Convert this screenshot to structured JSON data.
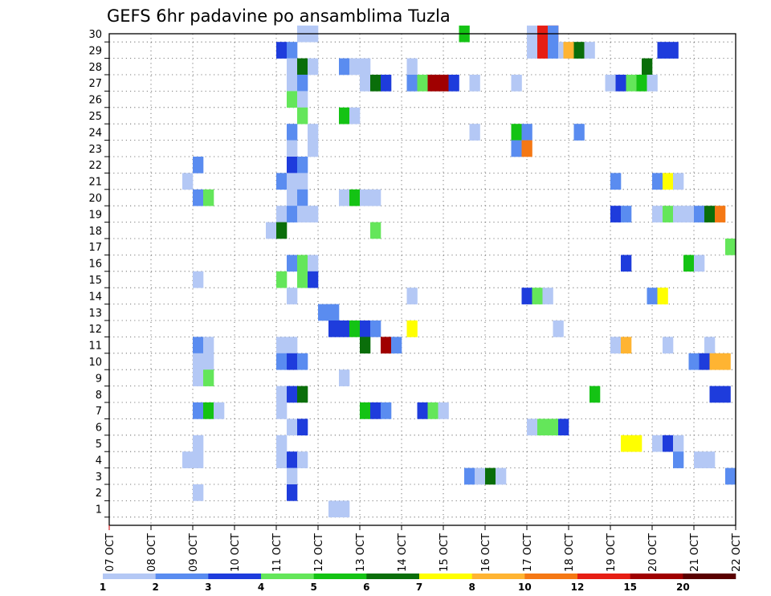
{
  "chart_data": {
    "type": "heatmap",
    "title": "GEFS 6hr padavine po ansamblima Tuzla",
    "x_tick_labels": [
      "07 OCT",
      "08 OCT",
      "09 OCT",
      "10 OCT",
      "11 OCT",
      "12 OCT",
      "13 OCT",
      "14 OCT",
      "15 OCT",
      "16 OCT",
      "17 OCT",
      "18 OCT",
      "19 OCT",
      "20 OCT",
      "21 OCT",
      "22 OCT"
    ],
    "x_range_days": [
      7,
      22
    ],
    "y_tick_labels": [
      "1",
      "2",
      "3",
      "4",
      "5",
      "6",
      "7",
      "8",
      "9",
      "10",
      "11",
      "12",
      "13",
      "14",
      "15",
      "16",
      "17",
      "18",
      "19",
      "20",
      "21",
      "22",
      "23",
      "24",
      "25",
      "26",
      "27",
      "28",
      "29",
      "30"
    ],
    "ylim": [
      0,
      30
    ],
    "grid": true,
    "colorbar": {
      "position": "bottom",
      "tick_labels": [
        "1",
        "2",
        "3",
        "4",
        "5",
        "6",
        "7",
        "8",
        "10",
        "12",
        "15",
        "20"
      ],
      "colors": [
        "#b4c8f5",
        "#5a8cf0",
        "#1e3cdc",
        "#64e65a",
        "#14c314",
        "#0a6e0a",
        "#ffff00",
        "#ffb432",
        "#f57814",
        "#e61e14",
        "#a00000",
        "#5a0000"
      ]
    },
    "cells": [
      {
        "member": 30,
        "day": 11.5,
        "color_class": 1,
        "span": 2
      },
      {
        "member": 30,
        "day": 15.375,
        "color_class": 5
      },
      {
        "member": 30,
        "day": 17.0,
        "color_class": 1
      },
      {
        "member": 30,
        "day": 17.25,
        "color_class": 10,
        "span": 2
      },
      {
        "member": 30,
        "day": 17.5,
        "color_class": 2
      },
      {
        "member": 29,
        "day": 11.0,
        "color_class": 3
      },
      {
        "member": 29,
        "day": 11.25,
        "color_class": 2
      },
      {
        "member": 29,
        "day": 17.0,
        "color_class": 1
      },
      {
        "member": 29,
        "day": 17.25,
        "color_class": 10
      },
      {
        "member": 29,
        "day": 17.5,
        "color_class": 2
      },
      {
        "member": 29,
        "day": 17.75,
        "color_class": 1
      },
      {
        "member": 29,
        "day": 17.875,
        "color_class": 8
      },
      {
        "member": 29,
        "day": 18.125,
        "color_class": 6
      },
      {
        "member": 29,
        "day": 18.375,
        "color_class": 1
      },
      {
        "member": 29,
        "day": 20.125,
        "color_class": 3,
        "span": 2
      },
      {
        "member": 28,
        "day": 11.25,
        "color_class": 1
      },
      {
        "member": 28,
        "day": 11.5,
        "color_class": 6
      },
      {
        "member": 28,
        "day": 11.75,
        "color_class": 1
      },
      {
        "member": 28,
        "day": 12.5,
        "color_class": 2
      },
      {
        "member": 28,
        "day": 12.75,
        "color_class": 1,
        "span": 2
      },
      {
        "member": 28,
        "day": 14.125,
        "color_class": 1
      },
      {
        "member": 28,
        "day": 19.75,
        "color_class": 6
      },
      {
        "member": 27,
        "day": 11.25,
        "color_class": 1
      },
      {
        "member": 27,
        "day": 11.5,
        "color_class": 2
      },
      {
        "member": 27,
        "day": 13.0,
        "color_class": 1
      },
      {
        "member": 27,
        "day": 13.25,
        "color_class": 6
      },
      {
        "member": 27,
        "day": 13.5,
        "color_class": 3
      },
      {
        "member": 27,
        "day": 14.125,
        "color_class": 2
      },
      {
        "member": 27,
        "day": 14.375,
        "color_class": 4
      },
      {
        "member": 27,
        "day": 14.625,
        "color_class": 11,
        "span": 2
      },
      {
        "member": 27,
        "day": 15.125,
        "color_class": 3
      },
      {
        "member": 27,
        "day": 15.625,
        "color_class": 1
      },
      {
        "member": 27,
        "day": 16.625,
        "color_class": 1
      },
      {
        "member": 27,
        "day": 18.875,
        "color_class": 1
      },
      {
        "member": 27,
        "day": 19.125,
        "color_class": 3
      },
      {
        "member": 27,
        "day": 19.375,
        "color_class": 4
      },
      {
        "member": 27,
        "day": 19.625,
        "color_class": 5
      },
      {
        "member": 27,
        "day": 19.875,
        "color_class": 1
      },
      {
        "member": 26,
        "day": 11.25,
        "color_class": 4
      },
      {
        "member": 26,
        "day": 11.5,
        "color_class": 1
      },
      {
        "member": 25,
        "day": 11.5,
        "color_class": 4
      },
      {
        "member": 25,
        "day": 12.5,
        "color_class": 5
      },
      {
        "member": 25,
        "day": 12.75,
        "color_class": 1
      },
      {
        "member": 24,
        "day": 11.25,
        "color_class": 2
      },
      {
        "member": 24,
        "day": 11.75,
        "color_class": 1
      },
      {
        "member": 24,
        "day": 15.625,
        "color_class": 1
      },
      {
        "member": 24,
        "day": 16.625,
        "color_class": 5
      },
      {
        "member": 24,
        "day": 16.875,
        "color_class": 2
      },
      {
        "member": 24,
        "day": 18.125,
        "color_class": 2
      },
      {
        "member": 23,
        "day": 11.25,
        "color_class": 1
      },
      {
        "member": 23,
        "day": 11.75,
        "color_class": 1
      },
      {
        "member": 23,
        "day": 16.625,
        "color_class": 2
      },
      {
        "member": 23,
        "day": 16.875,
        "color_class": 9
      },
      {
        "member": 22,
        "day": 9.0,
        "color_class": 2
      },
      {
        "member": 22,
        "day": 11.25,
        "color_class": 3
      },
      {
        "member": 22,
        "day": 11.5,
        "color_class": 2
      },
      {
        "member": 21,
        "day": 8.75,
        "color_class": 1
      },
      {
        "member": 21,
        "day": 11.0,
        "color_class": 2
      },
      {
        "member": 21,
        "day": 11.25,
        "color_class": 1,
        "span": 2
      },
      {
        "member": 21,
        "day": 19.0,
        "color_class": 2
      },
      {
        "member": 21,
        "day": 20.0,
        "color_class": 2
      },
      {
        "member": 21,
        "day": 20.25,
        "color_class": 7
      },
      {
        "member": 21,
        "day": 20.5,
        "color_class": 1
      },
      {
        "member": 20,
        "day": 9.0,
        "color_class": 2
      },
      {
        "member": 20,
        "day": 9.25,
        "color_class": 4
      },
      {
        "member": 20,
        "day": 11.25,
        "color_class": 1
      },
      {
        "member": 20,
        "day": 11.5,
        "color_class": 2
      },
      {
        "member": 20,
        "day": 12.5,
        "color_class": 1
      },
      {
        "member": 20,
        "day": 12.75,
        "color_class": 5
      },
      {
        "member": 20,
        "day": 13.0,
        "color_class": 1
      },
      {
        "member": 20,
        "day": 13.25,
        "color_class": 1
      },
      {
        "member": 19,
        "day": 11.0,
        "color_class": 1
      },
      {
        "member": 19,
        "day": 11.25,
        "color_class": 2
      },
      {
        "member": 19,
        "day": 11.5,
        "color_class": 1,
        "span": 2
      },
      {
        "member": 19,
        "day": 19.0,
        "color_class": 3
      },
      {
        "member": 19,
        "day": 19.25,
        "color_class": 2
      },
      {
        "member": 19,
        "day": 20.0,
        "color_class": 1
      },
      {
        "member": 19,
        "day": 20.25,
        "color_class": 4
      },
      {
        "member": 19,
        "day": 20.5,
        "color_class": 1,
        "span": 2
      },
      {
        "member": 19,
        "day": 21.0,
        "color_class": 2
      },
      {
        "member": 19,
        "day": 21.25,
        "color_class": 6
      },
      {
        "member": 19,
        "day": 21.5,
        "color_class": 9
      },
      {
        "member": 18,
        "day": 10.75,
        "color_class": 1
      },
      {
        "member": 18,
        "day": 11.0,
        "color_class": 6
      },
      {
        "member": 18,
        "day": 13.25,
        "color_class": 4
      },
      {
        "member": 17,
        "day": 21.75,
        "color_class": 4
      },
      {
        "member": 16,
        "day": 11.25,
        "color_class": 2
      },
      {
        "member": 16,
        "day": 11.5,
        "color_class": 4
      },
      {
        "member": 16,
        "day": 11.75,
        "color_class": 1
      },
      {
        "member": 16,
        "day": 19.25,
        "color_class": 3
      },
      {
        "member": 16,
        "day": 20.75,
        "color_class": 5
      },
      {
        "member": 16,
        "day": 21.0,
        "color_class": 1
      },
      {
        "member": 15,
        "day": 9.0,
        "color_class": 1
      },
      {
        "member": 15,
        "day": 11.0,
        "color_class": 4
      },
      {
        "member": 15,
        "day": 11.5,
        "color_class": 4
      },
      {
        "member": 15,
        "day": 11.75,
        "color_class": 3
      },
      {
        "member": 14,
        "day": 11.25,
        "color_class": 1
      },
      {
        "member": 14,
        "day": 14.125,
        "color_class": 1
      },
      {
        "member": 14,
        "day": 16.875,
        "color_class": 3
      },
      {
        "member": 14,
        "day": 17.125,
        "color_class": 4
      },
      {
        "member": 14,
        "day": 17.375,
        "color_class": 1
      },
      {
        "member": 14,
        "day": 19.875,
        "color_class": 2
      },
      {
        "member": 14,
        "day": 20.125,
        "color_class": 7
      },
      {
        "member": 13,
        "day": 12.0,
        "color_class": 2,
        "span": 2
      },
      {
        "member": 12,
        "day": 12.25,
        "color_class": 3,
        "span": 2
      },
      {
        "member": 12,
        "day": 12.75,
        "color_class": 5
      },
      {
        "member": 12,
        "day": 13.0,
        "color_class": 3
      },
      {
        "member": 12,
        "day": 13.25,
        "color_class": 2
      },
      {
        "member": 12,
        "day": 14.125,
        "color_class": 7
      },
      {
        "member": 12,
        "day": 17.625,
        "color_class": 1
      },
      {
        "member": 11,
        "day": 9.0,
        "color_class": 2
      },
      {
        "member": 11,
        "day": 9.25,
        "color_class": 1
      },
      {
        "member": 11,
        "day": 11.0,
        "color_class": 1,
        "span": 2
      },
      {
        "member": 11,
        "day": 13.0,
        "color_class": 6
      },
      {
        "member": 11,
        "day": 13.5,
        "color_class": 11
      },
      {
        "member": 11,
        "day": 13.75,
        "color_class": 2
      },
      {
        "member": 11,
        "day": 19.0,
        "color_class": 1
      },
      {
        "member": 11,
        "day": 19.25,
        "color_class": 8
      },
      {
        "member": 11,
        "day": 20.25,
        "color_class": 1
      },
      {
        "member": 11,
        "day": 21.25,
        "color_class": 1
      },
      {
        "member": 10,
        "day": 9.0,
        "color_class": 1,
        "span": 2
      },
      {
        "member": 10,
        "day": 11.0,
        "color_class": 2
      },
      {
        "member": 10,
        "day": 11.25,
        "color_class": 3
      },
      {
        "member": 10,
        "day": 11.5,
        "color_class": 2
      },
      {
        "member": 10,
        "day": 20.875,
        "color_class": 2
      },
      {
        "member": 10,
        "day": 21.125,
        "color_class": 3
      },
      {
        "member": 10,
        "day": 21.375,
        "color_class": 8,
        "span": 2
      },
      {
        "member": 9,
        "day": 9.0,
        "color_class": 1
      },
      {
        "member": 9,
        "day": 9.25,
        "color_class": 4
      },
      {
        "member": 9,
        "day": 12.5,
        "color_class": 1
      },
      {
        "member": 8,
        "day": 11.0,
        "color_class": 1
      },
      {
        "member": 8,
        "day": 11.25,
        "color_class": 3
      },
      {
        "member": 8,
        "day": 11.5,
        "color_class": 6
      },
      {
        "member": 8,
        "day": 18.5,
        "color_class": 5
      },
      {
        "member": 8,
        "day": 21.375,
        "color_class": 3,
        "span": 2
      },
      {
        "member": 7,
        "day": 9.0,
        "color_class": 2
      },
      {
        "member": 7,
        "day": 9.25,
        "color_class": 5
      },
      {
        "member": 7,
        "day": 9.5,
        "color_class": 1
      },
      {
        "member": 7,
        "day": 11.0,
        "color_class": 1
      },
      {
        "member": 7,
        "day": 13.0,
        "color_class": 5
      },
      {
        "member": 7,
        "day": 13.25,
        "color_class": 3
      },
      {
        "member": 7,
        "day": 13.5,
        "color_class": 2
      },
      {
        "member": 7,
        "day": 14.375,
        "color_class": 3
      },
      {
        "member": 7,
        "day": 14.625,
        "color_class": 4
      },
      {
        "member": 7,
        "day": 14.875,
        "color_class": 1
      },
      {
        "member": 6,
        "day": 11.25,
        "color_class": 1
      },
      {
        "member": 6,
        "day": 11.5,
        "color_class": 3
      },
      {
        "member": 6,
        "day": 17.0,
        "color_class": 1
      },
      {
        "member": 6,
        "day": 17.25,
        "color_class": 4,
        "span": 2
      },
      {
        "member": 6,
        "day": 17.75,
        "color_class": 3
      },
      {
        "member": 5,
        "day": 9.0,
        "color_class": 1
      },
      {
        "member": 5,
        "day": 11.0,
        "color_class": 1
      },
      {
        "member": 5,
        "day": 19.25,
        "color_class": 7,
        "span": 2
      },
      {
        "member": 5,
        "day": 20.0,
        "color_class": 1
      },
      {
        "member": 5,
        "day": 20.25,
        "color_class": 3
      },
      {
        "member": 5,
        "day": 20.5,
        "color_class": 1
      },
      {
        "member": 4,
        "day": 8.75,
        "color_class": 1,
        "span": 2
      },
      {
        "member": 4,
        "day": 11.0,
        "color_class": 1
      },
      {
        "member": 4,
        "day": 11.25,
        "color_class": 3
      },
      {
        "member": 4,
        "day": 11.5,
        "color_class": 1
      },
      {
        "member": 4,
        "day": 20.5,
        "color_class": 2
      },
      {
        "member": 4,
        "day": 21.0,
        "color_class": 1,
        "span": 2
      },
      {
        "member": 3,
        "day": 11.25,
        "color_class": 1
      },
      {
        "member": 3,
        "day": 15.5,
        "color_class": 2
      },
      {
        "member": 3,
        "day": 15.75,
        "color_class": 1
      },
      {
        "member": 3,
        "day": 16.0,
        "color_class": 6
      },
      {
        "member": 3,
        "day": 16.25,
        "color_class": 1
      },
      {
        "member": 3,
        "day": 21.75,
        "color_class": 2
      },
      {
        "member": 2,
        "day": 9.0,
        "color_class": 1
      },
      {
        "member": 2,
        "day": 11.25,
        "color_class": 3
      },
      {
        "member": 1,
        "day": 12.25,
        "color_class": 1,
        "span": 2
      }
    ]
  }
}
